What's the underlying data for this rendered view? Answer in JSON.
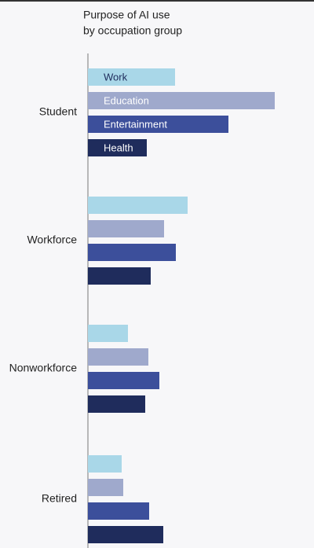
{
  "chart_data": {
    "type": "bar",
    "orientation": "horizontal",
    "title": "Purpose of AI use",
    "subtitle": "by occupation group",
    "categories": [
      "Student",
      "Workforce",
      "Nonworkforce",
      "Retired"
    ],
    "series": [
      {
        "name": "Work",
        "color": "#a9d7e8",
        "values": [
          111,
          127,
          51,
          43
        ]
      },
      {
        "name": "Education",
        "color": "#9fa9cc",
        "values": [
          238,
          97,
          77,
          45
        ]
      },
      {
        "name": "Entertainment",
        "color": "#3c4f9b",
        "values": [
          179,
          112,
          91,
          78
        ]
      },
      {
        "name": "Health",
        "color": "#1f2c5c",
        "values": [
          75,
          80,
          73,
          96
        ]
      }
    ],
    "xlim": [
      0,
      288
    ]
  }
}
